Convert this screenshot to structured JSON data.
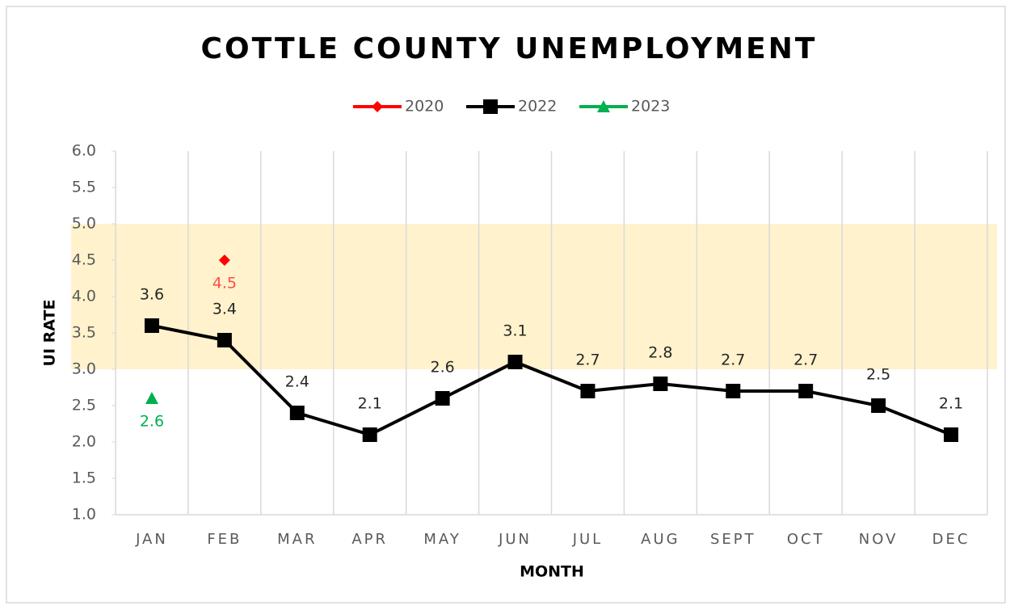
{
  "chart_data": {
    "type": "line",
    "title": "COTTLE COUNTY UNEMPLOYMENT",
    "x_label": "MONTH",
    "y_label": "UI RATE",
    "categories": [
      "JAN",
      "FEB",
      "MAR",
      "APR",
      "MAY",
      "JUN",
      "JUL",
      "AUG",
      "SEPT",
      "OCT",
      "NOV",
      "DEC"
    ],
    "series": [
      {
        "name": "2020",
        "color": "#ff0000",
        "marker": "diamond",
        "label_color": "#ff4b4b",
        "label_position": "below",
        "values": [
          null,
          4.5,
          null,
          null,
          null,
          null,
          null,
          null,
          null,
          null,
          null,
          null
        ]
      },
      {
        "name": "2022",
        "color": "#000000",
        "marker": "square",
        "label_color": "#262626",
        "label_position": "above",
        "values": [
          3.6,
          3.4,
          2.4,
          2.1,
          2.6,
          3.1,
          2.7,
          2.8,
          2.7,
          2.7,
          2.5,
          2.1
        ]
      },
      {
        "name": "2023",
        "color": "#00b050",
        "marker": "triangle",
        "label_color": "#00b050",
        "label_position": "below",
        "values": [
          2.6,
          null,
          null,
          null,
          null,
          null,
          null,
          null,
          null,
          null,
          null,
          null
        ]
      }
    ],
    "highlight_band": {
      "range": [
        3,
        5
      ],
      "color": "#fff2cc"
    },
    "ylim": [
      1,
      6
    ],
    "yticks": [
      {
        "value": 1,
        "label": "1.0"
      },
      1.5,
      {
        "value": 2,
        "label": "2.0"
      },
      2.5,
      {
        "value": 3,
        "label": "3.0"
      },
      3.5,
      {
        "value": 4,
        "label": "4.0"
      },
      4.5,
      {
        "value": 5,
        "label": "5.0"
      },
      5.5,
      {
        "value": 6,
        "label": "6.0"
      }
    ],
    "grid": true,
    "legend": "top"
  }
}
